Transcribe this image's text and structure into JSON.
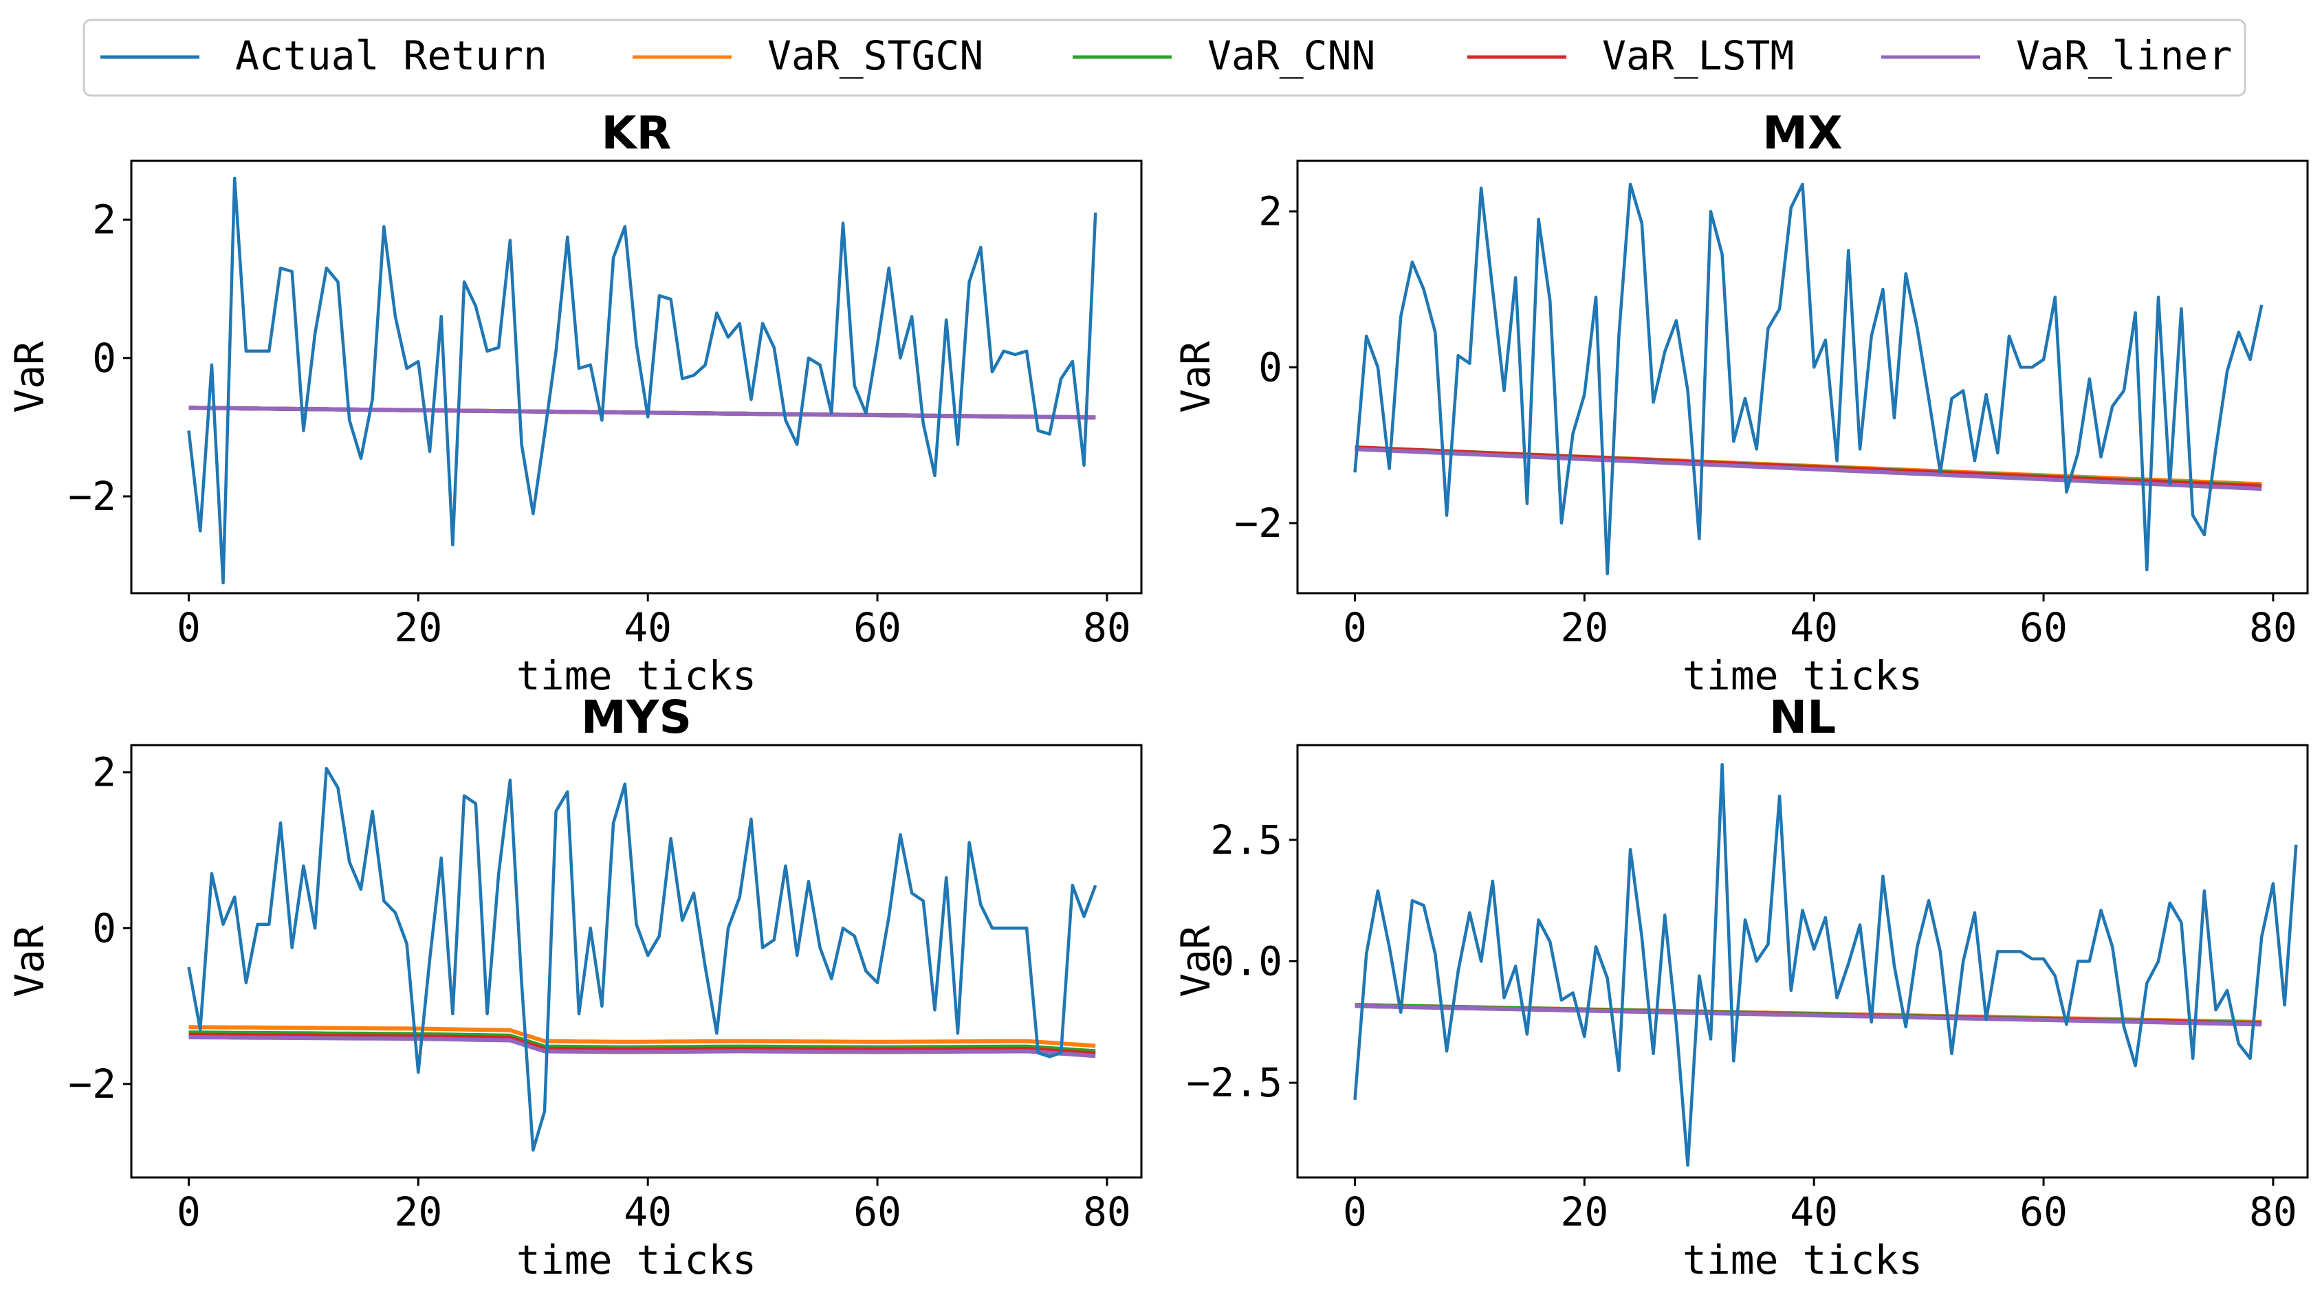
{
  "legend": {
    "entries": [
      {
        "label": "Actual Return",
        "color": "#1f77b4"
      },
      {
        "label": "VaR_STGCN",
        "color": "#ff7f0e"
      },
      {
        "label": "VaR_CNN",
        "color": "#2ca02c"
      },
      {
        "label": "VaR_LSTM",
        "color": "#d62728"
      },
      {
        "label": "VaR_liner",
        "color": "#9467bd"
      }
    ]
  },
  "chart_data": [
    {
      "type": "line",
      "title": "KR",
      "xlabel": "time ticks",
      "ylabel": "VaR",
      "xlim": [
        -5,
        83
      ],
      "ylim": [
        -3.4,
        2.85
      ],
      "xticks": [
        0,
        20,
        40,
        60,
        80
      ],
      "yticks": [
        -2,
        0,
        2
      ],
      "ytick_labels": [
        "−2",
        "0",
        "2"
      ],
      "series": [
        {
          "name": "Actual Return",
          "values": [
            -1.05,
            -2.5,
            -0.1,
            -3.25,
            2.6,
            0.1,
            0.1,
            0.1,
            1.3,
            1.25,
            -1.05,
            0.35,
            1.3,
            1.1,
            -0.9,
            -1.45,
            -0.6,
            1.9,
            0.6,
            -0.15,
            -0.05,
            -1.35,
            0.6,
            -2.7,
            1.1,
            0.75,
            0.1,
            0.15,
            1.7,
            -1.25,
            -2.25,
            -1.1,
            0.1,
            1.75,
            -0.15,
            -0.1,
            -0.9,
            1.45,
            1.9,
            0.2,
            -0.85,
            0.9,
            0.85,
            -0.3,
            -0.25,
            -0.1,
            0.65,
            0.3,
            0.5,
            -0.6,
            0.5,
            0.15,
            -0.9,
            -1.25,
            0.0,
            -0.1,
            -0.8,
            1.95,
            -0.4,
            -0.8,
            0.2,
            1.3,
            0.0,
            0.6,
            -0.95,
            -1.7,
            0.55,
            -1.25,
            1.1,
            1.6,
            -0.2,
            0.1,
            0.05,
            0.1,
            -1.05,
            -1.1,
            -0.3,
            -0.05,
            -1.55,
            2.1
          ]
        },
        {
          "name": "VaR_STGCN",
          "start": -0.72,
          "end": -0.86,
          "offset": 0.0
        },
        {
          "name": "VaR_CNN",
          "start": -0.72,
          "end": -0.86,
          "offset": 0.0
        },
        {
          "name": "VaR_LSTM",
          "start": -0.72,
          "end": -0.86,
          "offset": 0.0
        },
        {
          "name": "VaR_liner",
          "start": -0.72,
          "end": -0.86,
          "offset": 0.0
        }
      ]
    },
    {
      "type": "line",
      "title": "MX",
      "xlabel": "time ticks",
      "ylabel": "VaR",
      "xlim": [
        -5,
        83
      ],
      "ylim": [
        -2.9,
        2.65
      ],
      "xticks": [
        0,
        20,
        40,
        60,
        80
      ],
      "yticks": [
        -2,
        0,
        2
      ],
      "ytick_labels": [
        "−2",
        "0",
        "2"
      ],
      "series": [
        {
          "name": "Actual Return",
          "values": [
            -1.35,
            0.4,
            0.0,
            -1.3,
            0.65,
            1.35,
            1.0,
            0.45,
            -1.9,
            0.15,
            0.05,
            2.3,
            1.0,
            -0.3,
            1.15,
            -1.75,
            1.9,
            0.85,
            -2.0,
            -0.85,
            -0.35,
            0.9,
            -2.65,
            0.4,
            2.35,
            1.85,
            -0.45,
            0.2,
            0.6,
            -0.3,
            -2.2,
            2.0,
            1.45,
            -0.95,
            -0.4,
            -1.05,
            0.5,
            0.75,
            2.05,
            2.35,
            0.0,
            0.35,
            -1.2,
            1.5,
            -1.05,
            0.4,
            1.0,
            -0.65,
            1.2,
            0.5,
            -0.4,
            -1.35,
            -0.4,
            -0.3,
            -1.2,
            -0.35,
            -1.1,
            0.4,
            0.0,
            0.0,
            0.1,
            0.9,
            -1.6,
            -1.1,
            -0.15,
            -1.15,
            -0.5,
            -0.3,
            0.7,
            -2.6,
            0.9,
            -1.5,
            0.75,
            -1.9,
            -2.15,
            -1.05,
            -0.05,
            0.45,
            0.1,
            0.8
          ]
        },
        {
          "name": "VaR_STGCN",
          "start": -1.03,
          "end": -1.5,
          "offset": 0.0
        },
        {
          "name": "VaR_CNN",
          "start": -1.03,
          "end": -1.52,
          "offset": 0.0
        },
        {
          "name": "VaR_LSTM",
          "start": -1.03,
          "end": -1.53,
          "offset": 0.0
        },
        {
          "name": "VaR_liner",
          "start": -1.05,
          "end": -1.56,
          "offset": 0.0
        }
      ]
    },
    {
      "type": "line",
      "title": "MYS",
      "xlabel": "time ticks",
      "ylabel": "VaR",
      "xlim": [
        -5,
        83
      ],
      "ylim": [
        -3.2,
        2.35
      ],
      "xticks": [
        0,
        20,
        40,
        60,
        80
      ],
      "yticks": [
        -2,
        0,
        2
      ],
      "ytick_labels": [
        "−2",
        "0",
        "2"
      ],
      "series": [
        {
          "name": "Actual Return",
          "values": [
            -0.5,
            -1.3,
            0.7,
            0.05,
            0.4,
            -0.7,
            0.05,
            0.05,
            1.35,
            -0.25,
            0.8,
            0.0,
            2.05,
            1.8,
            0.85,
            0.5,
            1.5,
            0.35,
            0.2,
            -0.2,
            -1.85,
            -0.4,
            0.9,
            -1.1,
            1.7,
            1.6,
            -1.1,
            0.7,
            1.9,
            -0.7,
            -2.85,
            -2.35,
            1.5,
            1.75,
            -1.1,
            0.0,
            -1.0,
            1.35,
            1.85,
            0.05,
            -0.35,
            -0.1,
            1.15,
            0.1,
            0.45,
            -0.5,
            -1.35,
            0.0,
            0.4,
            1.4,
            -0.25,
            -0.15,
            0.8,
            -0.35,
            0.6,
            -0.25,
            -0.65,
            0.0,
            -0.1,
            -0.55,
            -0.7,
            0.15,
            1.2,
            0.45,
            0.35,
            -1.05,
            0.65,
            -1.35,
            1.1,
            0.3,
            0.0,
            0.0,
            0.0,
            0.0,
            -1.6,
            -1.65,
            -1.6,
            0.55,
            0.15,
            0.55
          ]
        },
        {
          "name": "VaR_STGCN",
          "offset": 0.07
        },
        {
          "name": "VaR_CNN",
          "offset": 0.0
        },
        {
          "name": "VaR_LSTM",
          "offset": -0.03
        },
        {
          "name": "VaR_liner",
          "offset": -0.06
        }
      ],
      "var_base_x": [
        0,
        10,
        20,
        28,
        31,
        38,
        48,
        60,
        73,
        79
      ],
      "var_base_y": [
        -1.34,
        -1.35,
        -1.36,
        -1.38,
        -1.52,
        -1.53,
        -1.52,
        -1.53,
        -1.52,
        -1.58
      ]
    },
    {
      "type": "line",
      "title": "NL",
      "xlabel": "time ticks",
      "ylabel": "VaR",
      "xlim": [
        -5,
        83
      ],
      "ylim": [
        -4.45,
        4.45
      ],
      "xticks": [
        0,
        20,
        40,
        60,
        80
      ],
      "yticks": [
        -2.5,
        0,
        2.5
      ],
      "ytick_labels": [
        "−2.5",
        "0.0",
        "2.5"
      ],
      "series": [
        {
          "name": "Actual Return",
          "values": [
            -2.85,
            0.15,
            1.45,
            0.3,
            -1.05,
            1.25,
            1.15,
            0.15,
            -1.85,
            -0.2,
            1.0,
            0.0,
            1.65,
            -0.75,
            -0.1,
            -1.5,
            0.85,
            0.4,
            -0.8,
            -0.65,
            -1.55,
            0.3,
            -0.35,
            -2.25,
            2.3,
            0.5,
            -1.9,
            0.95,
            -1.3,
            -4.2,
            -0.3,
            -1.6,
            4.05,
            -2.05,
            0.85,
            0.0,
            0.35,
            3.4,
            -0.6,
            1.05,
            0.25,
            0.9,
            -0.75,
            -0.05,
            0.75,
            -1.25,
            1.75,
            -0.1,
            -1.35,
            0.3,
            1.25,
            0.2,
            -1.9,
            0.0,
            1.0,
            -1.2,
            0.2,
            0.2,
            0.2,
            0.05,
            0.05,
            -0.3,
            -1.3,
            0.0,
            0.0,
            1.05,
            0.3,
            -1.35,
            -2.15,
            -0.45,
            0.0,
            1.2,
            0.8,
            -2.0,
            1.45,
            -1.0,
            -0.6,
            -1.7,
            -2.0,
            0.5,
            1.6,
            -0.9,
            2.4
          ]
        },
        {
          "name": "VaR_STGCN",
          "start": -0.9,
          "end": -1.25,
          "offset": 0.0
        },
        {
          "name": "VaR_CNN",
          "start": -0.9,
          "end": -1.27,
          "offset": 0.0
        },
        {
          "name": "VaR_LSTM",
          "start": -0.92,
          "end": -1.28,
          "offset": 0.0
        },
        {
          "name": "VaR_liner",
          "start": -0.92,
          "end": -1.3,
          "offset": 0.0
        }
      ]
    }
  ]
}
